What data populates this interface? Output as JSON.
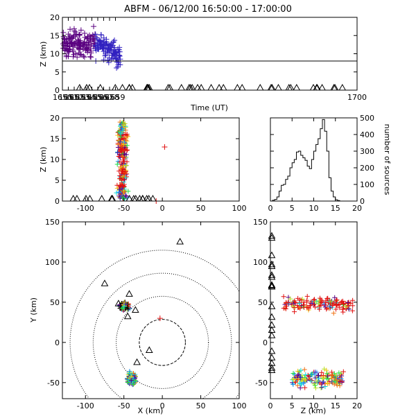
{
  "title": "ABFM - 06/12/00 16:50:00 - 17:00:00",
  "chart_data": [
    {
      "id": "time_height",
      "type": "scatter",
      "title": "ABFM - 06/12/00 16:50:00 - 17:00:00",
      "xlabel": "Time (UT)",
      "ylabel": "Z (km)",
      "xlim": [
        1650,
        1700
      ],
      "ylim": [
        0,
        20
      ],
      "xticks": [
        1650,
        1651,
        1652,
        1653,
        1654,
        1655,
        1656,
        1657,
        1658,
        1659,
        1700
      ],
      "xtick_labels": [
        "1650",
        "1651",
        "1652",
        "1653",
        "1654",
        "1655",
        "1656",
        "1657",
        "1658",
        "1659",
        "1700"
      ],
      "yticks": [
        0,
        5,
        10,
        15,
        20
      ],
      "reference_line_z": 8,
      "color_by": "time",
      "colormap": [
        "#5a0080",
        "#3020c0",
        "#1890f0",
        "#10d8d8",
        "#20e040",
        "#b8e020",
        "#f0c010",
        "#f07010",
        "#e01010"
      ],
      "series": [
        {
          "x": [
            1650.3,
            1650.8,
            1651.2,
            1651.7,
            1652.1,
            1652.6,
            1653.1,
            1653.6,
            1654.2,
            1654.7,
            1655.3,
            1655.8,
            1656.4,
            1657.0,
            1657.5,
            1658.1,
            1658.6,
            1659.1,
            1659.6
          ],
          "y": [
            12.5,
            11.5,
            13.0,
            12.0,
            13.5,
            12.5,
            13.0,
            12.5,
            13.0,
            12.0,
            13.5,
            12.0,
            13.0,
            12.5,
            12.0,
            11.0,
            10.5,
            9.0,
            9.5
          ]
        }
      ],
      "markers_at_ground": "triangles"
    },
    {
      "id": "x_height",
      "type": "scatter",
      "xlabel": "",
      "ylabel": "Z (km)",
      "xlim": [
        -130,
        100
      ],
      "ylim": [
        0,
        20
      ],
      "xticks": [
        -100,
        -50,
        0,
        50,
        100
      ],
      "yticks": [
        0,
        5,
        10,
        15,
        20
      ],
      "cluster": {
        "x_center": -52,
        "x_range": [
          -65,
          -42
        ],
        "z_range": [
          0,
          19
        ]
      },
      "outliers": [
        {
          "x": 3,
          "y": 13
        },
        {
          "x": -8,
          "y": 0
        }
      ]
    },
    {
      "id": "height_histogram",
      "type": "line",
      "xlabel": "",
      "ylabel": "number of sources",
      "xlim": [
        0,
        20
      ],
      "ylim": [
        0,
        500
      ],
      "xticks": [
        0,
        5,
        10,
        15,
        20
      ],
      "yticks": [
        0,
        100,
        200,
        300,
        400,
        500
      ],
      "x": [
        0,
        0.5,
        1,
        1.5,
        2,
        2.5,
        3,
        3.5,
        4,
        4.5,
        5,
        5.5,
        6,
        6.5,
        7,
        7.5,
        8,
        8.5,
        9,
        9.5,
        10,
        10.5,
        11,
        11.5,
        12,
        12.5,
        13,
        13.5,
        14,
        14.5,
        15,
        15.5,
        16,
        16.5,
        17,
        17.5,
        18,
        18.5,
        19,
        19.5,
        20
      ],
      "values": [
        0,
        5,
        10,
        25,
        60,
        95,
        100,
        130,
        150,
        200,
        230,
        250,
        295,
        300,
        275,
        260,
        245,
        210,
        195,
        250,
        300,
        340,
        375,
        435,
        490,
        420,
        300,
        140,
        60,
        25,
        8,
        3,
        0,
        0,
        0,
        0,
        0,
        0,
        0,
        0,
        0
      ]
    },
    {
      "id": "plan_view",
      "type": "scatter",
      "xlabel": "X (km)",
      "ylabel": "Y (km)",
      "xlim": [
        -130,
        100
      ],
      "ylim": [
        -70,
        150
      ],
      "xticks": [
        -100,
        -50,
        0,
        50,
        100
      ],
      "yticks": [
        -50,
        0,
        50,
        100,
        150
      ],
      "range_rings_km": [
        30,
        60,
        90,
        120
      ],
      "clusters": [
        {
          "x": -50,
          "y": 45
        },
        {
          "x": -40,
          "y": -45
        }
      ],
      "stations": [
        {
          "x": 23,
          "y": 125
        },
        {
          "x": -75,
          "y": 73
        },
        {
          "x": -43,
          "y": 60
        },
        {
          "x": -57,
          "y": 48
        },
        {
          "x": -45,
          "y": 32
        },
        {
          "x": -35,
          "y": 40
        },
        {
          "x": -17,
          "y": -10
        },
        {
          "x": -33,
          "y": -25
        }
      ]
    },
    {
      "id": "z_y_view",
      "type": "scatter",
      "xlabel": "Z (km)",
      "ylabel": "",
      "xlim": [
        0,
        20
      ],
      "ylim": [
        -70,
        150
      ],
      "xticks": [
        0,
        5,
        10,
        15,
        20
      ],
      "yticks": [
        -50,
        0,
        50,
        100,
        150
      ],
      "clusters": [
        {
          "z_range": [
            3,
            19
          ],
          "y_range": [
            35,
            60
          ]
        },
        {
          "z_range": [
            5,
            17
          ],
          "y_range": [
            -60,
            -30
          ]
        }
      ]
    }
  ]
}
